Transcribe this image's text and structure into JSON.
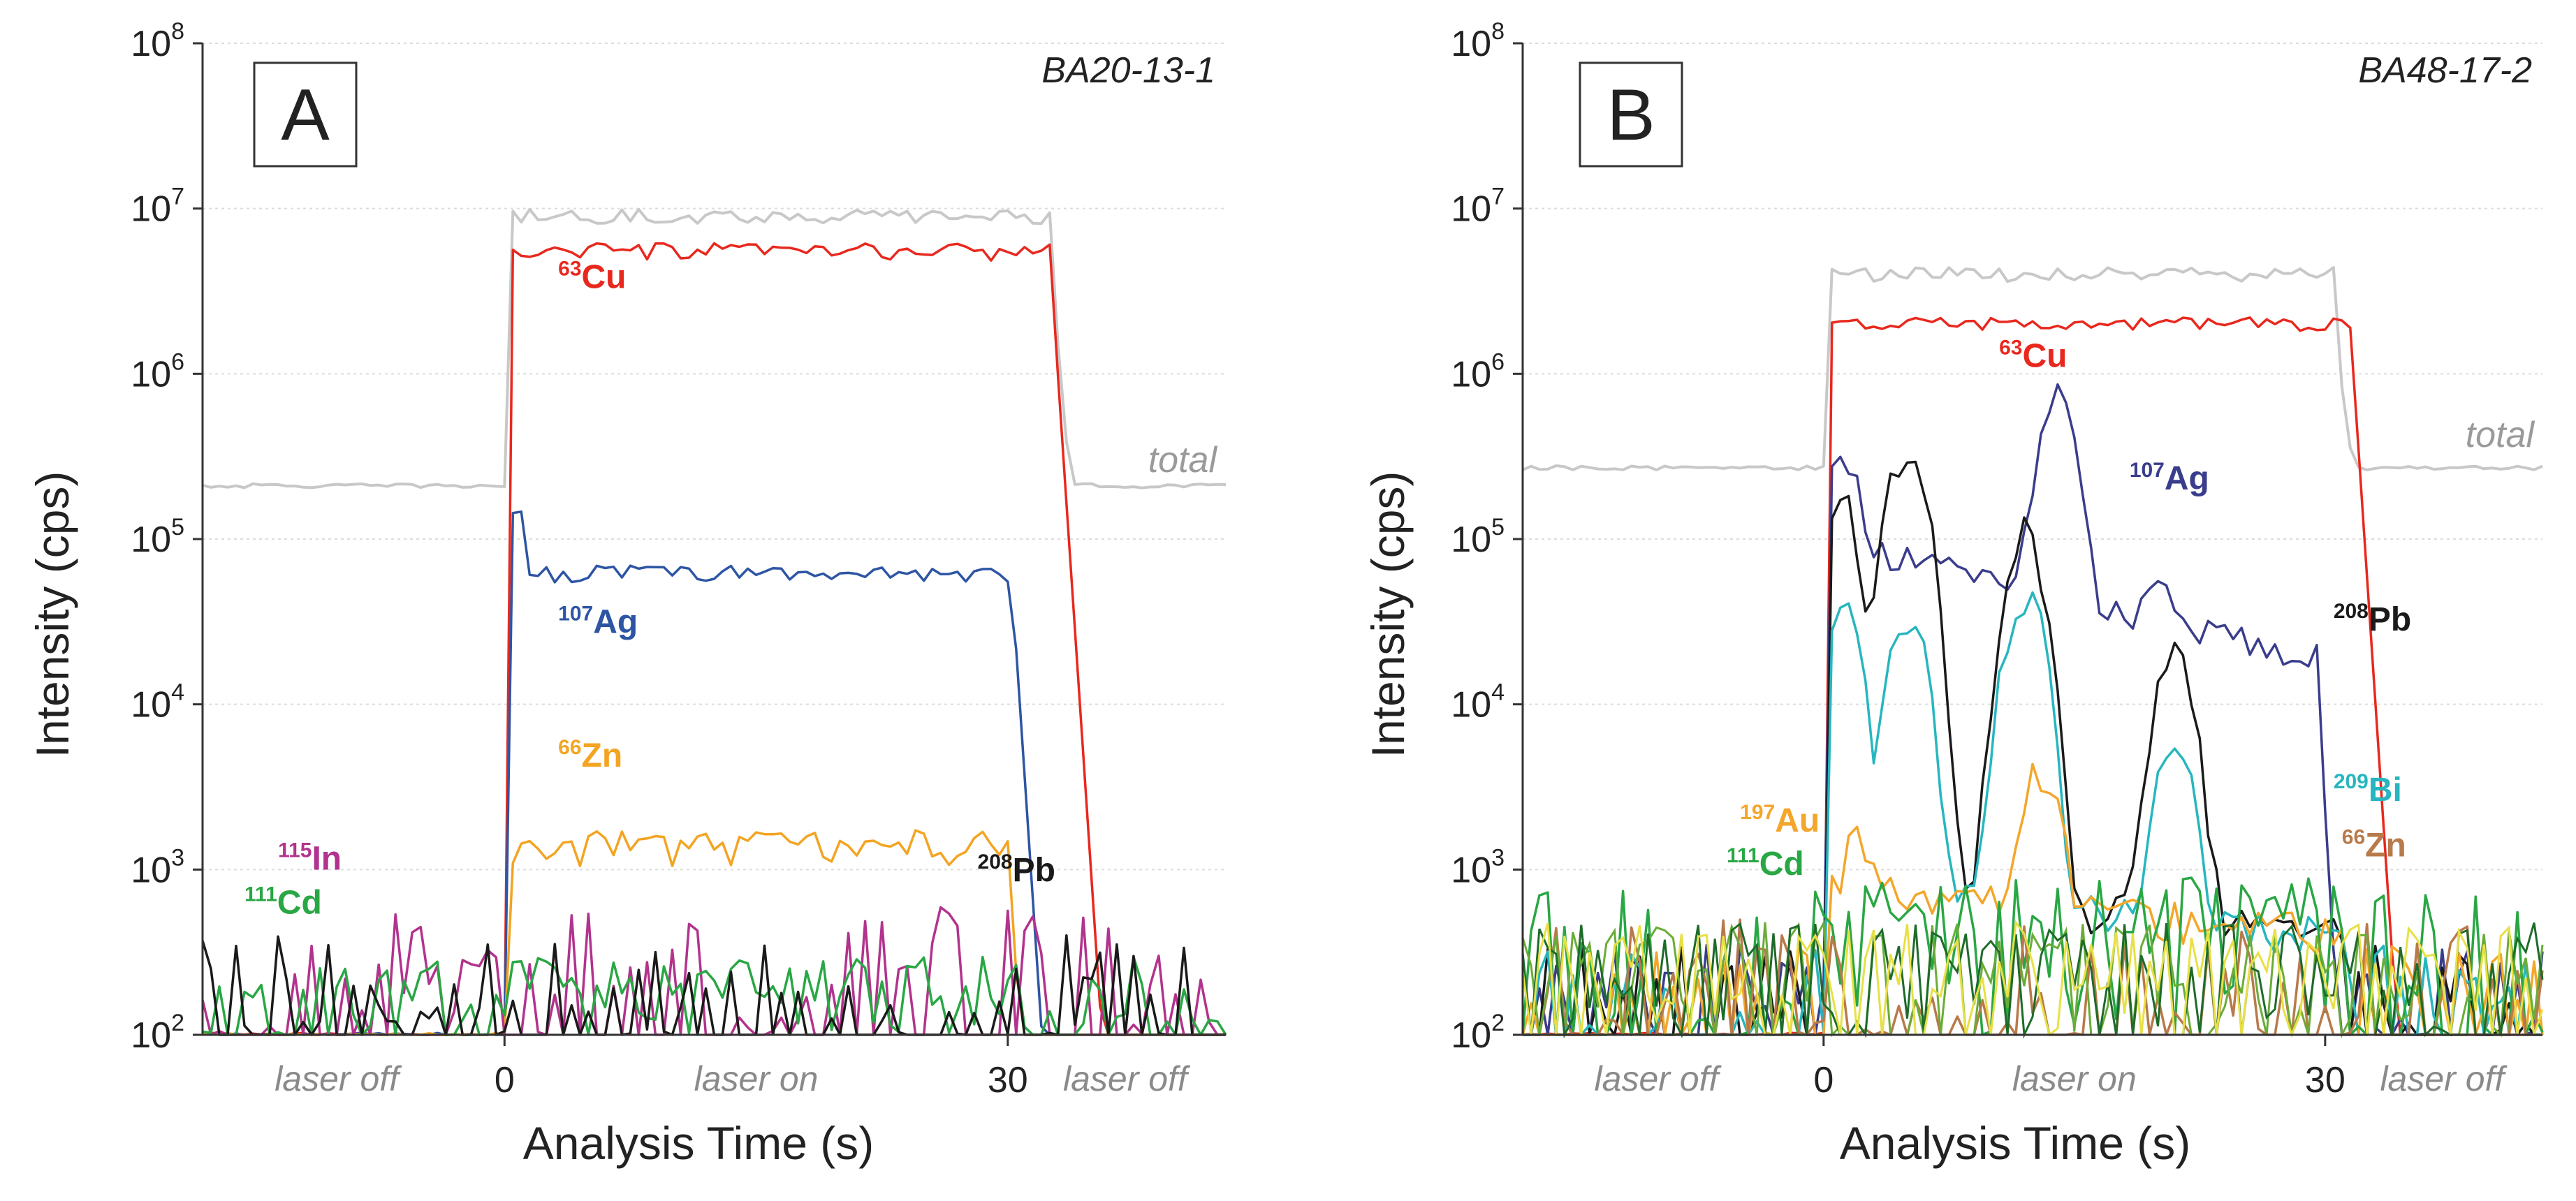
{
  "x_axis_title": "Analysis Time (s)",
  "y_axis_title": "Intensity (cps)",
  "colors": {
    "total": "#c8c8c8",
    "Cu": "#e8281e",
    "Ag": "#2e55a4",
    "Zn_A": "#f3a422",
    "Zn_B": "#b87a4a",
    "In": "#b2338d",
    "Cd": "#29a744",
    "Pb": "#1a1a1a",
    "Bi": "#27b6bf",
    "Au": "#f4a62b",
    "Au_trace": "#e8e045",
    "Ag_B": "#3a3d8c",
    "Cd_B": "#1e6b2a",
    "noise_green": "#6aac38"
  },
  "chart_data": [
    {
      "type": "line",
      "panel": "A",
      "sample": "BA20-13-1",
      "title": "BA20-13-1",
      "xlabel": "Analysis Time (s)",
      "ylabel": "Intensity (cps)",
      "yscale": "log",
      "ylim": [
        100,
        100000000
      ],
      "xlim": [
        -18,
        43
      ],
      "x_ticks": [
        0,
        30
      ],
      "x_tick_labels": [
        "0",
        "30"
      ],
      "y_ticks": [
        100,
        1000,
        10000,
        100000,
        1000000,
        10000000,
        100000000
      ],
      "y_tick_labels": [
        {
          "base": "10",
          "exp": "2"
        },
        {
          "base": "10",
          "exp": "3"
        },
        {
          "base": "10",
          "exp": "4"
        },
        {
          "base": "10",
          "exp": "5"
        },
        {
          "base": "10",
          "exp": "6"
        },
        {
          "base": "10",
          "exp": "7"
        },
        {
          "base": "10",
          "exp": "8"
        }
      ],
      "grid": true,
      "regions": [
        {
          "label": "laser off",
          "x": -10
        },
        {
          "label": "laser on",
          "x": 15
        },
        {
          "label": "laser off",
          "x": 37
        }
      ],
      "total_label": "total",
      "series": [
        {
          "name": "total",
          "mass": "",
          "element": "total",
          "level": 210000,
          "on_level": 9000000,
          "drop_at": 32.5,
          "end_level": 210000,
          "variation": 0.1
        },
        {
          "name": "63Cu",
          "mass": "63",
          "element": "Cu",
          "level": 100,
          "on_level": 5500000,
          "drop_at": 32.5,
          "end_level": 100,
          "variation": 0.12
        },
        {
          "name": "107Ag",
          "mass": "107",
          "element": "Ag",
          "level": 100,
          "on_level": 62000,
          "peak": 150000,
          "drop_at": 30.2,
          "end_level": 100,
          "variation": 0.12
        },
        {
          "name": "66Zn",
          "mass": "66",
          "element": "Zn",
          "level": 100,
          "on_level": 1400,
          "drop_at": 30,
          "end_level": 100,
          "variation": 0.25
        },
        {
          "name": "115In",
          "mass": "115",
          "element": "In",
          "level": 100,
          "noise_max": 600
        },
        {
          "name": "111Cd",
          "mass": "111",
          "element": "Cd",
          "level": 100,
          "noise_max": 300
        },
        {
          "name": "208Pb",
          "mass": "208",
          "element": "Pb",
          "level": 100,
          "noise_max": 400
        }
      ],
      "labels": [
        {
          "series": "63Cu",
          "mass": "63",
          "element": "Cu",
          "x": 3.2,
          "y": 3300000
        },
        {
          "series": "107Ag",
          "mass": "107",
          "element": "Ag",
          "x": 3.2,
          "y": 27000
        },
        {
          "series": "66Zn",
          "mass": "66",
          "element": "Zn",
          "x": 3.2,
          "y": 4200
        },
        {
          "series": "115In",
          "mass": "115",
          "element": "In",
          "x": -13.5,
          "y": 1000
        },
        {
          "series": "111Cd",
          "mass": "111",
          "element": "Cd",
          "x": -15.5,
          "y": 540
        },
        {
          "series": "208Pb",
          "mass": "208",
          "element": "Pb",
          "x": 28.2,
          "y": 850
        }
      ]
    },
    {
      "type": "line",
      "panel": "B",
      "sample": "BA48-17-2",
      "title": "BA48-17-2",
      "xlabel": "Analysis Time (s)",
      "ylabel": "Intensity (cps)",
      "yscale": "log",
      "ylim": [
        100,
        100000000
      ],
      "xlim": [
        -18,
        43
      ],
      "x_ticks": [
        0,
        30
      ],
      "x_tick_labels": [
        "0",
        "30"
      ],
      "y_ticks": [
        100,
        1000,
        10000,
        100000,
        1000000,
        10000000,
        100000000
      ],
      "y_tick_labels": [
        {
          "base": "10",
          "exp": "2"
        },
        {
          "base": "10",
          "exp": "3"
        },
        {
          "base": "10",
          "exp": "4"
        },
        {
          "base": "10",
          "exp": "5"
        },
        {
          "base": "10",
          "exp": "6"
        },
        {
          "base": "10",
          "exp": "7"
        },
        {
          "base": "10",
          "exp": "8"
        }
      ],
      "grid": true,
      "regions": [
        {
          "label": "laser off",
          "x": -10
        },
        {
          "label": "laser on",
          "x": 15
        },
        {
          "label": "laser off",
          "x": 37
        }
      ],
      "total_label": "total",
      "series": [
        {
          "name": "total",
          "mass": "",
          "element": "total",
          "level": 270000,
          "on_level": 4000000,
          "drop_at": 30.5,
          "end_level": 270000,
          "variation": 0.1
        },
        {
          "name": "63Cu",
          "mass": "63",
          "element": "Cu",
          "level": 100,
          "on_level": 2000000,
          "drop_at": 31.5,
          "end_level": 100,
          "variation": 0.1
        },
        {
          "name": "107Ag",
          "mass": "107",
          "element": "Ag",
          "level": 100,
          "on_level": 100000,
          "peaks": [
            [
              1,
              280000
            ],
            [
              14,
              720000
            ],
            [
              20,
              30000
            ]
          ],
          "drop_at": 29.5,
          "end_level": 100,
          "variation": 0.2
        },
        {
          "name": "208Pb",
          "mass": "208",
          "element": "Pb",
          "level": 100,
          "peaks": [
            [
              1,
              170000
            ],
            [
              5,
              370000
            ],
            [
              12,
              110000
            ],
            [
              21,
              20000
            ]
          ],
          "end_level": 100,
          "variation": 0.3
        },
        {
          "name": "209Bi",
          "mass": "209",
          "element": "Bi",
          "level": 100,
          "peaks": [
            [
              1,
              40000
            ],
            [
              5,
              35000
            ],
            [
              12,
              50000
            ],
            [
              21,
              5000
            ]
          ],
          "end_level": 100,
          "variation": 0.3
        },
        {
          "name": "197Au",
          "mass": "197",
          "element": "Au",
          "level": 100,
          "peaks": [
            [
              2,
              900
            ],
            [
              13,
              3900
            ]
          ],
          "end_level": 100,
          "variation": 0.3
        },
        {
          "name": "111Cd",
          "mass": "111",
          "element": "Cd",
          "level": 100,
          "noise_max": 900
        },
        {
          "name": "66Zn",
          "mass": "66",
          "element": "Zn",
          "level": 100,
          "noise_max": 500
        }
      ],
      "labels": [
        {
          "series": "63Cu",
          "mass": "63",
          "element": "Cu",
          "x": 10.5,
          "y": 1100000
        },
        {
          "series": "107Ag",
          "mass": "107",
          "element": "Ag",
          "x": 18.3,
          "y": 200000
        },
        {
          "series": "208Pb",
          "mass": "208",
          "element": "Pb",
          "x": 30.5,
          "y": 28000
        },
        {
          "series": "209Bi",
          "mass": "209",
          "element": "Bi",
          "x": 30.5,
          "y": 2600
        },
        {
          "series": "197Au",
          "mass": "197",
          "element": "Au",
          "x": -5,
          "y": 1700
        },
        {
          "series": "111Cd",
          "mass": "111",
          "element": "Cd",
          "x": -5.8,
          "y": 930
        },
        {
          "series": "66Zn",
          "mass": "66",
          "element": "Zn",
          "x": 31,
          "y": 1200
        }
      ]
    }
  ]
}
